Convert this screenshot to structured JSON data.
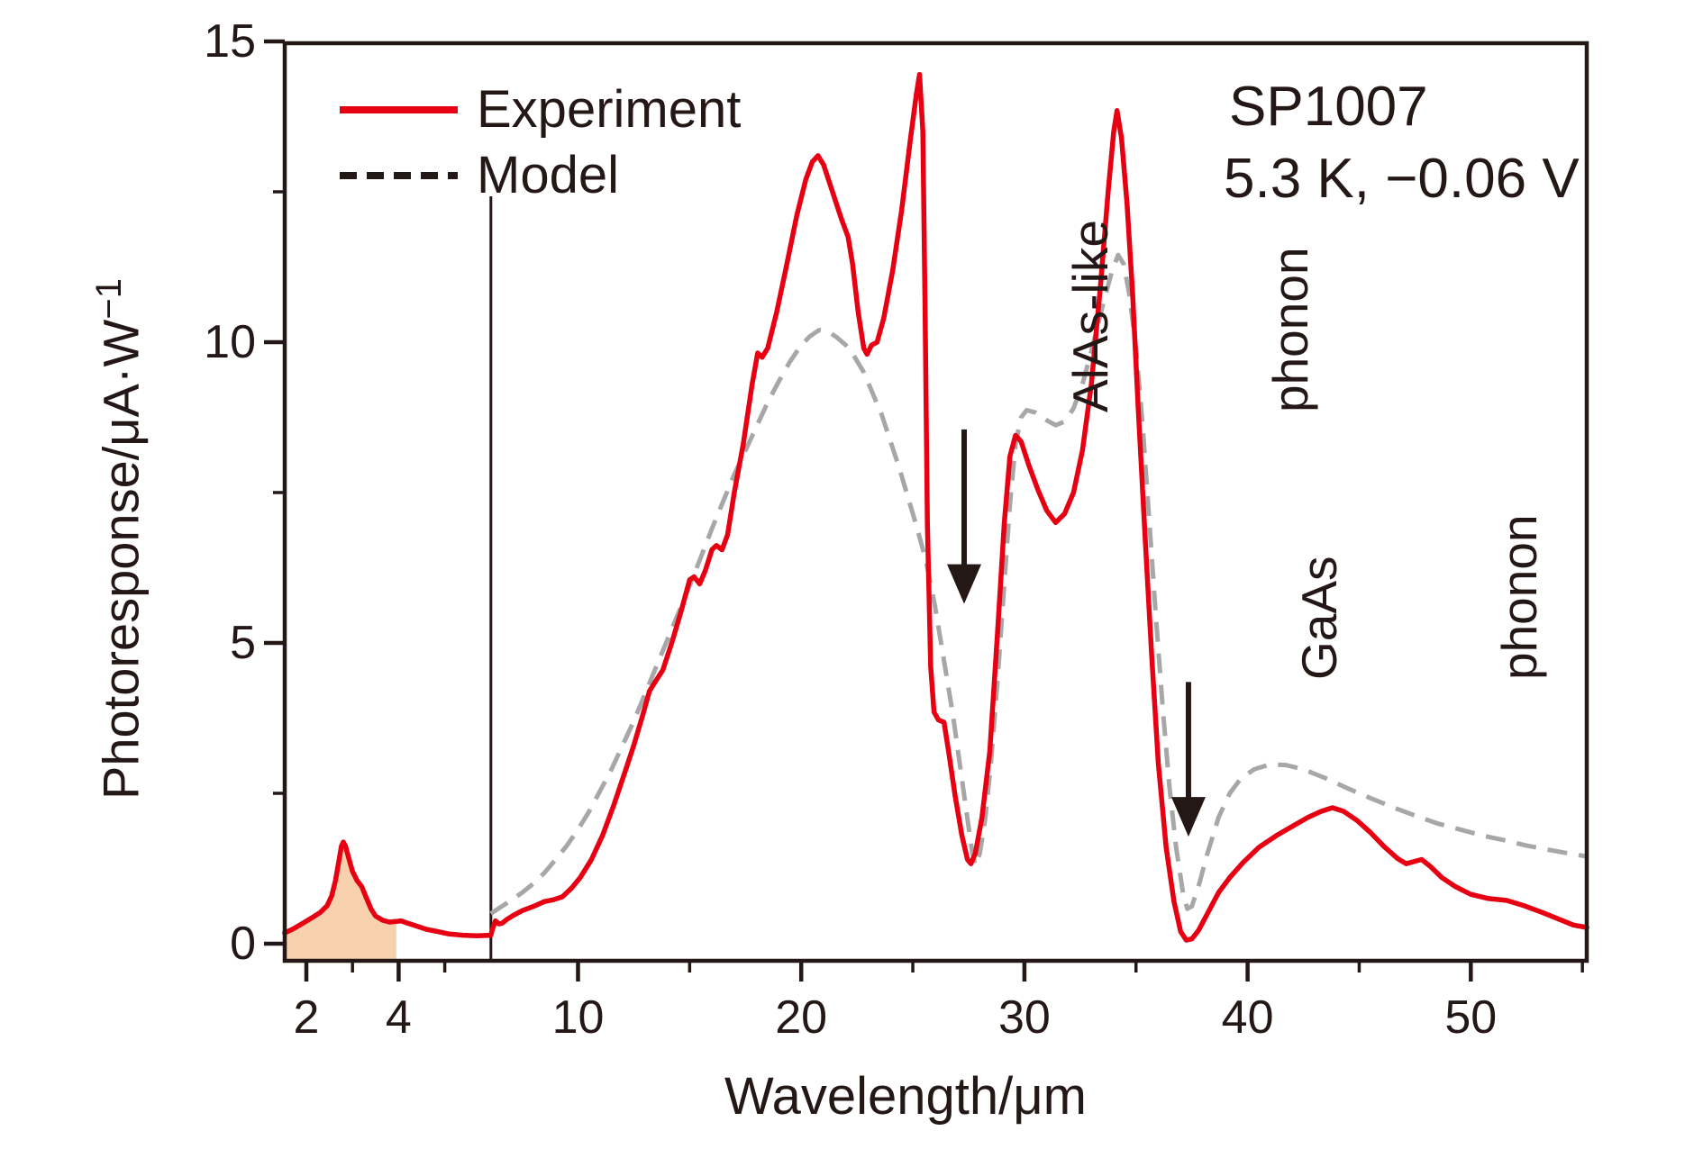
{
  "meta": {
    "background": "#ffffff",
    "ink_color": "#231815",
    "experiment_color": "#e60012",
    "model_color": "#a7a7a7",
    "shade_fill_color": "#f7d1ad"
  },
  "chart_data": {
    "type": "line",
    "sample_label": "SP1007",
    "conditions": "5.3 K, −0.06 V",
    "xlabel": "Wavelength/μm",
    "ylabel": "Photoresponse/μA·W",
    "ylabel_superscript": "−1",
    "x_axis": {
      "scale": "broken-linear",
      "break_at_um": 6,
      "range_left": [
        1.53,
        6
      ],
      "range_right": [
        6,
        55.2
      ],
      "ticks_major": [
        2,
        4,
        10,
        20,
        30,
        40,
        50
      ],
      "ticks_minor": [
        3,
        5,
        15,
        25,
        35,
        45,
        55
      ]
    },
    "y_axis": {
      "range": [
        -0.28,
        15
      ],
      "ticks_major": [
        0,
        5,
        10,
        15
      ],
      "ticks_minor": [
        2.5,
        7.5,
        12.5
      ]
    },
    "legend": [
      {
        "label": "Experiment",
        "style": "solid",
        "color": "#e60012"
      },
      {
        "label": "Model",
        "style": "dashed",
        "color": "#231815"
      }
    ],
    "shaded_region": {
      "under_series": "Experiment",
      "x_from_um": 1.53,
      "x_to_um": 4.02,
      "fill": "#f7d1ad"
    },
    "series": [
      {
        "name": "Experiment",
        "color": "#e60012",
        "dashed": false,
        "points": [
          [
            1.53,
            0.18
          ],
          [
            1.7,
            0.24
          ],
          [
            1.9,
            0.33
          ],
          [
            2.1,
            0.42
          ],
          [
            2.3,
            0.52
          ],
          [
            2.45,
            0.63
          ],
          [
            2.55,
            0.8
          ],
          [
            2.63,
            1.05
          ],
          [
            2.7,
            1.35
          ],
          [
            2.76,
            1.62
          ],
          [
            2.8,
            1.69
          ],
          [
            2.85,
            1.62
          ],
          [
            2.92,
            1.42
          ],
          [
            3.0,
            1.2
          ],
          [
            3.1,
            1.05
          ],
          [
            3.2,
            0.95
          ],
          [
            3.3,
            0.76
          ],
          [
            3.4,
            0.58
          ],
          [
            3.5,
            0.46
          ],
          [
            3.65,
            0.39
          ],
          [
            3.8,
            0.36
          ],
          [
            3.95,
            0.37
          ],
          [
            4.05,
            0.38
          ],
          [
            4.2,
            0.34
          ],
          [
            4.4,
            0.29
          ],
          [
            4.6,
            0.24
          ],
          [
            4.85,
            0.2
          ],
          [
            5.1,
            0.16
          ],
          [
            5.4,
            0.14
          ],
          [
            5.7,
            0.13
          ],
          [
            6.0,
            0.14
          ],
          [
            6.15,
            0.22
          ],
          [
            6.3,
            0.38
          ],
          [
            6.45,
            0.33
          ],
          [
            6.6,
            0.34
          ],
          [
            6.8,
            0.4
          ],
          [
            7.1,
            0.47
          ],
          [
            7.5,
            0.55
          ],
          [
            8.0,
            0.62
          ],
          [
            8.5,
            0.7
          ],
          [
            8.9,
            0.73
          ],
          [
            9.3,
            0.78
          ],
          [
            9.7,
            0.92
          ],
          [
            10.1,
            1.1
          ],
          [
            10.6,
            1.4
          ],
          [
            11.1,
            1.8
          ],
          [
            11.6,
            2.3
          ],
          [
            12.1,
            2.85
          ],
          [
            12.5,
            3.3
          ],
          [
            12.9,
            3.8
          ],
          [
            13.2,
            4.2
          ],
          [
            13.45,
            4.35
          ],
          [
            13.8,
            4.55
          ],
          [
            14.2,
            5.0
          ],
          [
            14.6,
            5.5
          ],
          [
            15.0,
            6.05
          ],
          [
            15.2,
            6.1
          ],
          [
            15.45,
            5.98
          ],
          [
            15.7,
            6.2
          ],
          [
            16.0,
            6.55
          ],
          [
            16.2,
            6.62
          ],
          [
            16.45,
            6.55
          ],
          [
            16.7,
            6.8
          ],
          [
            17.0,
            7.5
          ],
          [
            17.4,
            8.3
          ],
          [
            17.8,
            9.3
          ],
          [
            18.05,
            9.82
          ],
          [
            18.25,
            9.75
          ],
          [
            18.5,
            9.9
          ],
          [
            18.9,
            10.5
          ],
          [
            19.3,
            11.2
          ],
          [
            19.8,
            12.1
          ],
          [
            20.2,
            12.7
          ],
          [
            20.5,
            13.0
          ],
          [
            20.75,
            13.1
          ],
          [
            21.0,
            12.95
          ],
          [
            21.4,
            12.5
          ],
          [
            21.8,
            12.05
          ],
          [
            22.1,
            11.75
          ],
          [
            22.3,
            11.3
          ],
          [
            22.55,
            10.5
          ],
          [
            22.8,
            9.9
          ],
          [
            22.95,
            9.8
          ],
          [
            23.15,
            9.95
          ],
          [
            23.4,
            10.0
          ],
          [
            23.7,
            10.4
          ],
          [
            24.1,
            11.2
          ],
          [
            24.5,
            12.2
          ],
          [
            24.9,
            13.4
          ],
          [
            25.15,
            14.1
          ],
          [
            25.3,
            14.45
          ],
          [
            25.45,
            13.5
          ],
          [
            25.55,
            10.5
          ],
          [
            25.65,
            7.0
          ],
          [
            25.8,
            4.6
          ],
          [
            25.95,
            3.85
          ],
          [
            26.15,
            3.72
          ],
          [
            26.4,
            3.68
          ],
          [
            26.6,
            3.2
          ],
          [
            26.9,
            2.45
          ],
          [
            27.2,
            1.8
          ],
          [
            27.45,
            1.4
          ],
          [
            27.6,
            1.33
          ],
          [
            27.8,
            1.5
          ],
          [
            28.1,
            2.1
          ],
          [
            28.45,
            3.2
          ],
          [
            28.8,
            5.2
          ],
          [
            29.1,
            7.0
          ],
          [
            29.35,
            8.1
          ],
          [
            29.6,
            8.45
          ],
          [
            29.85,
            8.35
          ],
          [
            30.2,
            7.95
          ],
          [
            30.6,
            7.55
          ],
          [
            31.0,
            7.2
          ],
          [
            31.4,
            7.0
          ],
          [
            31.8,
            7.15
          ],
          [
            32.2,
            7.5
          ],
          [
            32.6,
            8.2
          ],
          [
            33.0,
            9.3
          ],
          [
            33.4,
            10.9
          ],
          [
            33.75,
            12.5
          ],
          [
            34.0,
            13.5
          ],
          [
            34.15,
            13.85
          ],
          [
            34.35,
            13.4
          ],
          [
            34.6,
            12.3
          ],
          [
            34.85,
            10.8
          ],
          [
            35.1,
            8.9
          ],
          [
            35.4,
            6.8
          ],
          [
            35.7,
            4.8
          ],
          [
            36.0,
            3.0
          ],
          [
            36.35,
            1.6
          ],
          [
            36.7,
            0.7
          ],
          [
            37.0,
            0.2
          ],
          [
            37.25,
            0.06
          ],
          [
            37.5,
            0.08
          ],
          [
            37.8,
            0.22
          ],
          [
            38.2,
            0.5
          ],
          [
            38.7,
            0.85
          ],
          [
            39.2,
            1.1
          ],
          [
            39.8,
            1.35
          ],
          [
            40.5,
            1.6
          ],
          [
            41.3,
            1.8
          ],
          [
            42.0,
            1.95
          ],
          [
            42.7,
            2.1
          ],
          [
            43.3,
            2.2
          ],
          [
            43.8,
            2.26
          ],
          [
            44.3,
            2.2
          ],
          [
            44.9,
            2.05
          ],
          [
            45.5,
            1.85
          ],
          [
            46.1,
            1.62
          ],
          [
            46.7,
            1.42
          ],
          [
            47.1,
            1.33
          ],
          [
            47.5,
            1.37
          ],
          [
            47.8,
            1.4
          ],
          [
            48.2,
            1.28
          ],
          [
            48.7,
            1.1
          ],
          [
            49.3,
            0.95
          ],
          [
            50.0,
            0.82
          ],
          [
            50.8,
            0.75
          ],
          [
            51.6,
            0.72
          ],
          [
            52.4,
            0.63
          ],
          [
            53.2,
            0.52
          ],
          [
            54.0,
            0.4
          ],
          [
            54.6,
            0.31
          ],
          [
            55.2,
            0.27
          ]
        ]
      },
      {
        "name": "Model",
        "color": "#a7a7a7",
        "dashed": true,
        "points": [
          [
            6.0,
            0.5
          ],
          [
            6.5,
            0.6
          ],
          [
            7.0,
            0.72
          ],
          [
            7.5,
            0.85
          ],
          [
            8.0,
            1.0
          ],
          [
            8.5,
            1.18
          ],
          [
            9.0,
            1.4
          ],
          [
            9.5,
            1.63
          ],
          [
            10.0,
            1.9
          ],
          [
            10.5,
            2.2
          ],
          [
            11.0,
            2.55
          ],
          [
            11.5,
            2.9
          ],
          [
            12.0,
            3.3
          ],
          [
            12.5,
            3.7
          ],
          [
            13.0,
            4.15
          ],
          [
            13.5,
            4.6
          ],
          [
            14.0,
            5.05
          ],
          [
            14.5,
            5.5
          ],
          [
            15.0,
            5.95
          ],
          [
            15.5,
            6.42
          ],
          [
            16.0,
            6.9
          ],
          [
            16.5,
            7.35
          ],
          [
            17.0,
            7.8
          ],
          [
            17.5,
            8.2
          ],
          [
            18.0,
            8.6
          ],
          [
            18.5,
            9.0
          ],
          [
            19.0,
            9.35
          ],
          [
            19.5,
            9.68
          ],
          [
            20.0,
            9.95
          ],
          [
            20.4,
            10.1
          ],
          [
            20.8,
            10.2
          ],
          [
            21.2,
            10.18
          ],
          [
            21.6,
            10.08
          ],
          [
            22.0,
            9.95
          ],
          [
            22.4,
            9.75
          ],
          [
            22.8,
            9.5
          ],
          [
            23.2,
            9.15
          ],
          [
            23.6,
            8.8
          ],
          [
            24.0,
            8.35
          ],
          [
            24.4,
            7.9
          ],
          [
            24.8,
            7.4
          ],
          [
            25.2,
            6.9
          ],
          [
            25.6,
            6.35
          ],
          [
            26.0,
            5.6
          ],
          [
            26.4,
            4.7
          ],
          [
            26.8,
            3.8
          ],
          [
            27.1,
            3.0
          ],
          [
            27.4,
            2.2
          ],
          [
            27.65,
            1.55
          ],
          [
            27.8,
            1.3
          ],
          [
            28.0,
            1.5
          ],
          [
            28.25,
            2.1
          ],
          [
            28.5,
            3.0
          ],
          [
            28.8,
            4.4
          ],
          [
            29.1,
            6.0
          ],
          [
            29.35,
            7.3
          ],
          [
            29.6,
            8.3
          ],
          [
            29.85,
            8.75
          ],
          [
            30.1,
            8.87
          ],
          [
            30.5,
            8.83
          ],
          [
            31.0,
            8.7
          ],
          [
            31.4,
            8.62
          ],
          [
            31.8,
            8.68
          ],
          [
            32.2,
            8.9
          ],
          [
            32.6,
            9.3
          ],
          [
            33.0,
            9.85
          ],
          [
            33.5,
            10.6
          ],
          [
            33.9,
            11.15
          ],
          [
            34.2,
            11.45
          ],
          [
            34.45,
            11.3
          ],
          [
            34.7,
            10.8
          ],
          [
            35.0,
            9.9
          ],
          [
            35.3,
            8.6
          ],
          [
            35.6,
            7.0
          ],
          [
            35.9,
            5.4
          ],
          [
            36.2,
            3.9
          ],
          [
            36.5,
            2.6
          ],
          [
            36.8,
            1.6
          ],
          [
            37.1,
            0.85
          ],
          [
            37.3,
            0.58
          ],
          [
            37.5,
            0.62
          ],
          [
            37.8,
            0.95
          ],
          [
            38.2,
            1.5
          ],
          [
            38.7,
            2.1
          ],
          [
            39.2,
            2.5
          ],
          [
            39.7,
            2.75
          ],
          [
            40.3,
            2.9
          ],
          [
            41.0,
            2.98
          ],
          [
            41.7,
            2.97
          ],
          [
            42.5,
            2.9
          ],
          [
            43.5,
            2.75
          ],
          [
            44.5,
            2.58
          ],
          [
            45.5,
            2.42
          ],
          [
            46.5,
            2.27
          ],
          [
            47.5,
            2.13
          ],
          [
            48.5,
            2.0
          ],
          [
            49.5,
            1.9
          ],
          [
            50.5,
            1.8
          ],
          [
            51.5,
            1.72
          ],
          [
            52.5,
            1.63
          ],
          [
            53.5,
            1.56
          ],
          [
            54.4,
            1.5
          ],
          [
            55.2,
            1.45
          ]
        ]
      }
    ],
    "annotations": [
      {
        "id": "alas",
        "lines": [
          "AlAs-like",
          "phonon"
        ],
        "arrow": {
          "x_um": 27.3,
          "from_value": 8.55,
          "to_value": 5.65
        }
      },
      {
        "id": "gaas",
        "lines": [
          "GaAs",
          "phonon"
        ],
        "arrow": {
          "x_um": 37.35,
          "from_value": 4.35,
          "to_value": 1.78
        }
      }
    ]
  }
}
